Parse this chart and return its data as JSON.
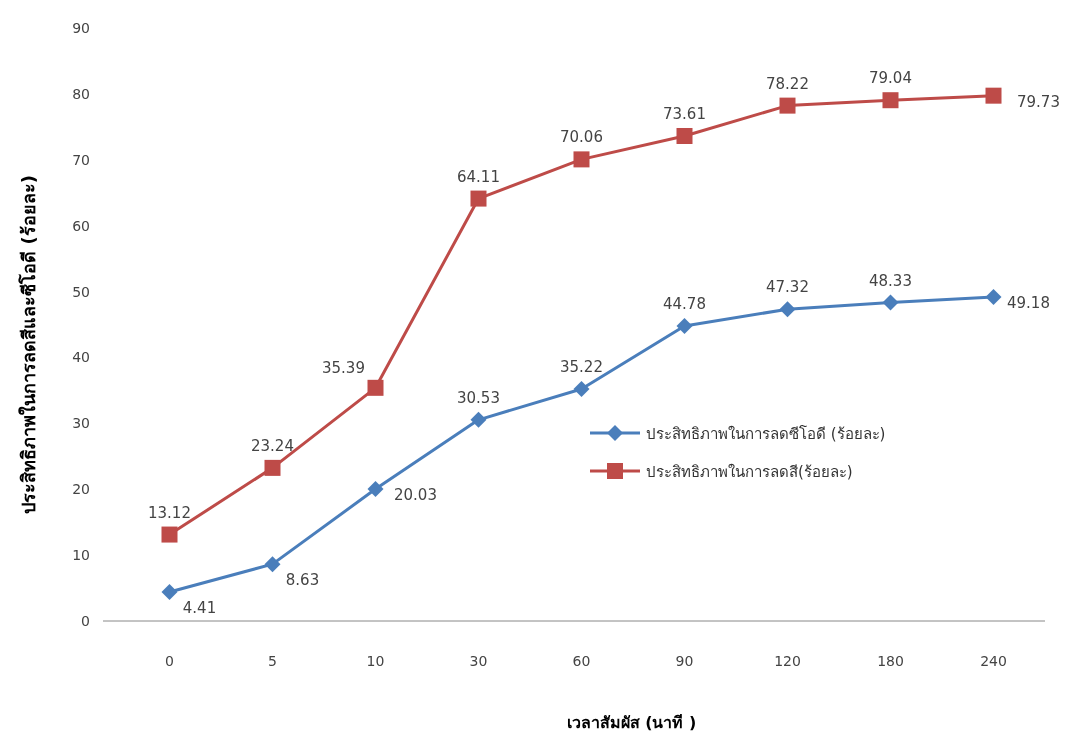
{
  "chart_data": {
    "type": "line",
    "xlabel": "เวลาสัมผัส (นาที )",
    "ylabel": "ประสิทธิภาพในการลดสีและซีโอดี (ร้อยละ)",
    "categories": [
      "0",
      "5",
      "10",
      "30",
      "60",
      "90",
      "120",
      "180",
      "240"
    ],
    "series": [
      {
        "name": "ประสิทธิภาพในการลดซีโอดี (ร้อยละ)",
        "color": "#4a7ebb",
        "marker": "diamond",
        "values": [
          4.41,
          8.63,
          20.03,
          30.53,
          35.22,
          44.78,
          47.32,
          48.33,
          49.18
        ]
      },
      {
        "name": "ประสิทธิภาพในการลดสี(ร้อยละ)",
        "color": "#be4b48",
        "marker": "square",
        "values": [
          13.12,
          23.24,
          35.39,
          64.11,
          70.06,
          73.61,
          78.22,
          79.04,
          79.73
        ]
      }
    ],
    "ylim": [
      0,
      90
    ],
    "yticks": [
      0,
      10,
      20,
      30,
      40,
      50,
      60,
      70,
      80,
      90
    ],
    "data_labels": true,
    "legend": "right",
    "grid": false
  }
}
